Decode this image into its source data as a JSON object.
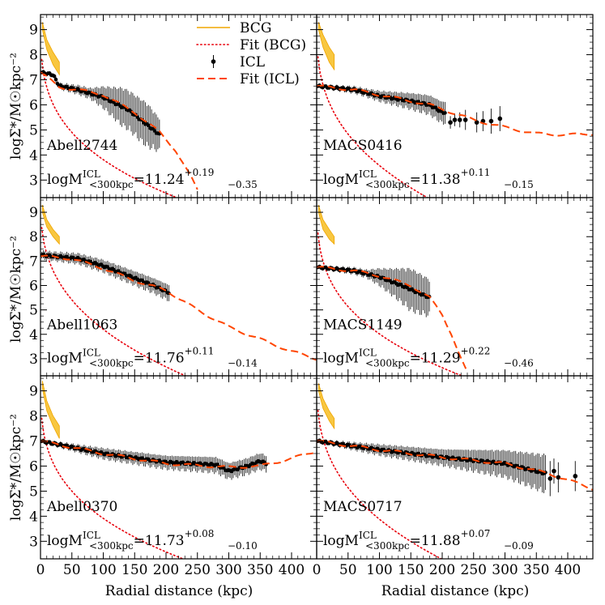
{
  "figure": {
    "ylabel": "logΣ*/M☉kpc⁻²",
    "xlabel": "Radial distance (kpc)"
  },
  "legend": [
    {
      "label": "BCG",
      "style": "bcg",
      "color": "#f0a500"
    },
    {
      "label": "Fit (BCG)",
      "style": "fit_bcg",
      "color": "#e8000b"
    },
    {
      "label": "ICL",
      "style": "icl",
      "color": "#000000"
    },
    {
      "label": "Fit (ICL)",
      "style": "fit_icl",
      "color": "#ff4500"
    }
  ],
  "chart_data": [
    {
      "type": "line",
      "cluster": "Abell2744",
      "mass_prefix": "logM",
      "mass_sup": "ICL",
      "mass_sub": "<300kpc",
      "mass_value": "=11.24",
      "err_up": "+0.19",
      "err_down": "−0.35",
      "xlim": [
        0,
        440
      ],
      "ylim": [
        2.3,
        9.6
      ],
      "bcg_band": [
        [
          3,
          9.3,
          9.0
        ],
        [
          10,
          8.6,
          8.2
        ],
        [
          20,
          8.1,
          7.6
        ],
        [
          30,
          7.7,
          7.2
        ]
      ],
      "fit_bcg": {
        "type": "sersic",
        "a": 9.6,
        "b": 2.9,
        "n": 0.3,
        "rmax": 440
      },
      "fit_icl": {
        "type": "wiggle",
        "points": [
          [
            0,
            7.3
          ],
          [
            30,
            6.7
          ],
          [
            60,
            6.6
          ],
          [
            100,
            6.4
          ],
          [
            150,
            5.7
          ],
          [
            190,
            4.9
          ],
          [
            215,
            4.2
          ],
          [
            240,
            3.1
          ],
          [
            250,
            2.6
          ]
        ]
      },
      "icl_range": [
        2,
        190
      ],
      "icl_step": 2.5,
      "icl_profile": [
        [
          0,
          7.3
        ],
        [
          20,
          7.2
        ],
        [
          30,
          6.75
        ],
        [
          60,
          6.6
        ],
        [
          100,
          6.3
        ],
        [
          140,
          5.8
        ],
        [
          160,
          5.4
        ],
        [
          190,
          4.8
        ]
      ],
      "icl_err": [
        [
          0,
          0.05
        ],
        [
          80,
          0.2
        ],
        [
          130,
          0.7
        ],
        [
          170,
          0.8
        ],
        [
          190,
          0.6
        ]
      ],
      "icl_outliers": []
    },
    {
      "type": "line",
      "cluster": "MACS0416",
      "mass_prefix": "logM",
      "mass_sup": "ICL",
      "mass_sub": "<300kpc",
      "mass_value": "=11.38",
      "err_up": "+0.11",
      "err_down": "−0.15",
      "xlim": [
        0,
        440
      ],
      "ylim": [
        2.3,
        9.6
      ],
      "bcg_band": [
        [
          3,
          9.3,
          9.0
        ],
        [
          10,
          8.8,
          8.3
        ],
        [
          20,
          8.3,
          7.7
        ],
        [
          28,
          8.0,
          7.4
        ]
      ],
      "fit_bcg": {
        "type": "sersic",
        "a": 9.4,
        "b": 2.6,
        "n": 0.35,
        "rmax": 440
      },
      "fit_icl": {
        "type": "wiggle",
        "points": [
          [
            0,
            6.75
          ],
          [
            60,
            6.6
          ],
          [
            120,
            6.3
          ],
          [
            180,
            6.0
          ],
          [
            250,
            5.4
          ],
          [
            300,
            5.1
          ],
          [
            350,
            4.85
          ],
          [
            400,
            4.8
          ],
          [
            440,
            4.85
          ]
        ]
      },
      "icl_range": [
        2,
        205
      ],
      "icl_step": 2.5,
      "icl_profile": [
        [
          0,
          6.75
        ],
        [
          60,
          6.6
        ],
        [
          100,
          6.35
        ],
        [
          150,
          6.15
        ],
        [
          180,
          6.0
        ],
        [
          200,
          5.7
        ]
      ],
      "icl_err": [
        [
          0,
          0.05
        ],
        [
          80,
          0.15
        ],
        [
          150,
          0.3
        ],
        [
          200,
          0.4
        ]
      ],
      "icl_outliers": [
        [
          213,
          5.3,
          0.25
        ],
        [
          220,
          5.4,
          0.25
        ],
        [
          228,
          5.4,
          0.3
        ],
        [
          237,
          5.4,
          0.4
        ],
        [
          255,
          5.3,
          0.4
        ],
        [
          265,
          5.35,
          0.4
        ],
        [
          278,
          5.35,
          0.5
        ],
        [
          292,
          5.45,
          0.5
        ]
      ]
    },
    {
      "type": "line",
      "cluster": "Abell1063",
      "mass_prefix": "logM",
      "mass_sup": "ICL",
      "mass_sub": "<300kpc",
      "mass_value": "=11.76",
      "err_up": "+0.11",
      "err_down": "−0.14",
      "xlim": [
        0,
        440
      ],
      "ylim": [
        2.3,
        9.6
      ],
      "bcg_band": [
        [
          3,
          9.3,
          9.0
        ],
        [
          10,
          8.7,
          8.4
        ],
        [
          20,
          8.3,
          8.0
        ],
        [
          30,
          8.0,
          7.7
        ]
      ],
      "fit_bcg": {
        "type": "sersic",
        "a": 9.8,
        "b": 2.5,
        "n": 0.35,
        "rmax": 440
      },
      "fit_icl": {
        "type": "wiggle",
        "points": [
          [
            0,
            7.2
          ],
          [
            50,
            7.1
          ],
          [
            100,
            6.7
          ],
          [
            150,
            6.2
          ],
          [
            200,
            5.8
          ],
          [
            250,
            5.0
          ],
          [
            300,
            4.3
          ],
          [
            350,
            3.8
          ],
          [
            400,
            3.3
          ],
          [
            440,
            3.0
          ]
        ]
      },
      "icl_range": [
        2,
        205
      ],
      "icl_step": 2.5,
      "icl_profile": [
        [
          0,
          7.25
        ],
        [
          40,
          7.15
        ],
        [
          60,
          7.1
        ],
        [
          100,
          6.8
        ],
        [
          140,
          6.4
        ],
        [
          180,
          6.0
        ],
        [
          205,
          5.7
        ]
      ],
      "icl_err": [
        [
          0,
          0.15
        ],
        [
          60,
          0.2
        ],
        [
          120,
          0.25
        ],
        [
          200,
          0.3
        ]
      ],
      "icl_outliers": []
    },
    {
      "type": "line",
      "cluster": "MACS1149",
      "mass_prefix": "logM",
      "mass_sup": "ICL",
      "mass_sub": "<300kpc",
      "mass_value": "=11.29",
      "err_up": "+0.22",
      "err_down": "−0.46",
      "xlim": [
        0,
        440
      ],
      "ylim": [
        2.3,
        9.6
      ],
      "bcg_band": [
        [
          3,
          9.3,
          9.0
        ],
        [
          10,
          8.7,
          8.3
        ],
        [
          20,
          8.3,
          7.9
        ],
        [
          28,
          8.0,
          7.7
        ]
      ],
      "fit_bcg": {
        "type": "sersic",
        "a": 10.0,
        "b": 3.0,
        "n": 0.3,
        "rmax": 440
      },
      "fit_icl": {
        "type": "wiggle",
        "points": [
          [
            0,
            6.75
          ],
          [
            60,
            6.6
          ],
          [
            100,
            6.4
          ],
          [
            150,
            6.0
          ],
          [
            180,
            5.5
          ],
          [
            200,
            4.8
          ],
          [
            215,
            4.0
          ],
          [
            230,
            3.0
          ],
          [
            240,
            2.4
          ]
        ]
      },
      "icl_range": [
        2,
        180
      ],
      "icl_step": 2.5,
      "icl_profile": [
        [
          0,
          6.75
        ],
        [
          60,
          6.6
        ],
        [
          100,
          6.35
        ],
        [
          140,
          5.95
        ],
        [
          180,
          5.5
        ]
      ],
      "icl_err": [
        [
          0,
          0.05
        ],
        [
          80,
          0.15
        ],
        [
          120,
          0.5
        ],
        [
          150,
          0.8
        ],
        [
          180,
          0.7
        ]
      ],
      "icl_outliers": []
    },
    {
      "type": "line",
      "cluster": "Abell0370",
      "mass_prefix": "logM",
      "mass_sup": "ICL",
      "mass_sub": "<300kpc",
      "mass_value": "=11.73",
      "err_up": "+0.08",
      "err_down": "−0.10",
      "xlim": [
        0,
        440
      ],
      "ylim": [
        2.3,
        9.6
      ],
      "bcg_band": [
        [
          3,
          9.4,
          9.1
        ],
        [
          10,
          8.6,
          8.2
        ],
        [
          20,
          8.0,
          7.6
        ],
        [
          30,
          7.6,
          7.1
        ]
      ],
      "fit_bcg": {
        "type": "sersic",
        "a": 9.7,
        "b": 2.9,
        "n": 0.3,
        "rmax": 440
      },
      "fit_icl": {
        "type": "wiggle",
        "points": [
          [
            0,
            7.0
          ],
          [
            100,
            6.5
          ],
          [
            200,
            6.1
          ],
          [
            300,
            5.95
          ],
          [
            350,
            6.0
          ],
          [
            400,
            6.3
          ],
          [
            440,
            6.6
          ]
        ]
      },
      "icl_range": [
        2,
        360
      ],
      "icl_step": 2.5,
      "icl_profile": [
        [
          0,
          7.0
        ],
        [
          100,
          6.5
        ],
        [
          200,
          6.15
        ],
        [
          280,
          6.05
        ],
        [
          300,
          5.8
        ],
        [
          330,
          6.0
        ],
        [
          350,
          6.2
        ],
        [
          360,
          6.1
        ]
      ],
      "icl_err": [
        [
          0,
          0.05
        ],
        [
          100,
          0.2
        ],
        [
          200,
          0.25
        ],
        [
          300,
          0.3
        ],
        [
          360,
          0.3
        ]
      ],
      "icl_outliers": []
    },
    {
      "type": "line",
      "cluster": "MACS0717",
      "mass_prefix": "logM",
      "mass_sup": "ICL",
      "mass_sub": "<300kpc",
      "mass_value": "=11.88",
      "err_up": "+0.07",
      "err_down": "−0.09",
      "xlim": [
        0,
        440
      ],
      "ylim": [
        2.3,
        9.6
      ],
      "bcg_band": [
        [
          3,
          9.3,
          9.0
        ],
        [
          10,
          8.7,
          8.3
        ],
        [
          20,
          8.2,
          7.8
        ],
        [
          28,
          7.9,
          7.5
        ]
      ],
      "fit_bcg": {
        "type": "sersic",
        "a": 9.7,
        "b": 2.6,
        "n": 0.35,
        "rmax": 440
      },
      "fit_icl": {
        "type": "wiggle",
        "points": [
          [
            0,
            7.0
          ],
          [
            100,
            6.65
          ],
          [
            200,
            6.35
          ],
          [
            300,
            6.1
          ],
          [
            370,
            5.7
          ],
          [
            440,
            5.1
          ]
        ]
      },
      "icl_range": [
        2,
        365
      ],
      "icl_step": 2.5,
      "icl_profile": [
        [
          0,
          7.0
        ],
        [
          100,
          6.65
        ],
        [
          200,
          6.35
        ],
        [
          300,
          6.1
        ],
        [
          365,
          5.7
        ]
      ],
      "icl_err": [
        [
          0,
          0.05
        ],
        [
          100,
          0.2
        ],
        [
          200,
          0.3
        ],
        [
          300,
          0.5
        ],
        [
          365,
          0.7
        ]
      ],
      "icl_outliers": [
        [
          372,
          5.5,
          0.7
        ],
        [
          378,
          5.8,
          0.5
        ],
        [
          385,
          5.55,
          0.6
        ],
        [
          412,
          5.6,
          0.6
        ]
      ]
    }
  ]
}
